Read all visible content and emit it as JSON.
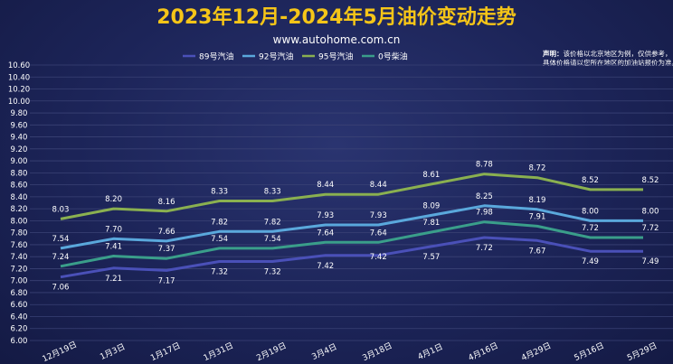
{
  "header": {
    "title": "2023年12月-2024年5月油价变动走势",
    "subtitle": "www.autohome.com.cn"
  },
  "disclaimer": {
    "label": "声明：",
    "line1": "该价格以北京地区为例，仅供参考，",
    "line2": "具体价格请以您所在地区的加油站报价为准。"
  },
  "colors": {
    "background": "#1c2458",
    "title": "#f5c518",
    "subtitle": "#ffffff",
    "grid": "#3a4275",
    "text": "#ffffff"
  },
  "chart_data": {
    "type": "line",
    "title": "2023年12月-2024年5月油价变动走势",
    "categories": [
      "12月19日",
      "1月3日",
      "1月17日",
      "1月31日",
      "2月19日",
      "3月4日",
      "3月18日",
      "4月1日",
      "4月16日",
      "4月29日",
      "5月16日",
      "5月29日"
    ],
    "ylim": [
      6.0,
      10.6
    ],
    "yticks": [
      "6.00",
      "6.20",
      "6.40",
      "6.60",
      "6.80",
      "7.00",
      "7.20",
      "7.40",
      "7.60",
      "7.80",
      "8.00",
      "8.20",
      "8.40",
      "8.60",
      "8.80",
      "9.00",
      "9.20",
      "9.40",
      "9.60",
      "9.80",
      "10.00",
      "10.20",
      "10.40",
      "10.60"
    ],
    "grid": true,
    "legend_position": "top",
    "series": [
      {
        "name": "89号汽油",
        "color": "#4a50b8",
        "values": [
          7.06,
          7.21,
          7.17,
          7.32,
          7.32,
          7.42,
          7.42,
          7.57,
          7.72,
          7.67,
          7.49,
          7.49
        ],
        "labels": [
          "7.06",
          "7.21",
          "7.17",
          "7.32",
          "7.32",
          "7.42",
          "",
          "7.57",
          "7.72",
          "7.67",
          "7.49",
          "7.49"
        ]
      },
      {
        "name": "92号汽油",
        "color": "#5aa8dc",
        "values": [
          7.54,
          7.7,
          7.66,
          7.82,
          7.82,
          7.93,
          7.93,
          8.09,
          8.25,
          8.19,
          8.0,
          8.0
        ],
        "labels": [
          "7.54",
          "7.70",
          "7.66",
          "7.82",
          "7.82",
          "7.93",
          "7.93",
          "8.09",
          "8.25",
          "8.19",
          "8.00",
          "8.00"
        ]
      },
      {
        "name": "95号汽油",
        "color": "#8ab050",
        "values": [
          8.03,
          8.2,
          8.16,
          8.33,
          8.33,
          8.44,
          8.44,
          8.61,
          8.78,
          8.72,
          8.52,
          8.52
        ],
        "labels": [
          "8.03",
          "8.20",
          "8.16",
          "8.33",
          "8.33",
          "8.44",
          "8.44",
          "8.61",
          "8.78",
          "8.72",
          "8.52",
          "8.52"
        ]
      },
      {
        "name": "0号柴油",
        "color": "#3a9e8a",
        "values": [
          7.24,
          7.41,
          7.37,
          7.54,
          7.54,
          7.64,
          7.64,
          7.81,
          7.98,
          7.91,
          7.72,
          7.72
        ],
        "labels": [
          "7.24",
          "7.41",
          "7.37",
          "7.54",
          "7.54",
          "7.64",
          "7.64",
          "7.81",
          "7.98",
          "7.91",
          "7.72",
          "7.72"
        ]
      }
    ],
    "extra_labels": [
      {
        "category_index": 6,
        "value": 7.42,
        "text": "7.42"
      }
    ]
  }
}
